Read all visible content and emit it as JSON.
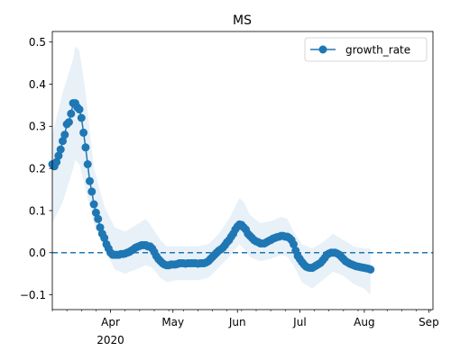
{
  "chart_data": {
    "type": "line",
    "title": "MS",
    "xlabel": "",
    "ylabel": "",
    "legend": {
      "entries": [
        "growth_rate"
      ],
      "placement": "top-right"
    },
    "x_start": "2020-03-04",
    "x_end": "2020-09-03",
    "y_range": [
      -0.135,
      0.525
    ],
    "y_ticks": [
      -0.1,
      0.0,
      0.1,
      0.2,
      0.3,
      0.4,
      0.5
    ],
    "y_tick_labels": [
      "−0.1",
      "0.0",
      "0.1",
      "0.2",
      "0.3",
      "0.4",
      "0.5"
    ],
    "x_major_ticks": [
      {
        "date": "2020-04-01",
        "label": "Apr",
        "sublabel": "2020"
      },
      {
        "date": "2020-05-01",
        "label": "May",
        "sublabel": ""
      },
      {
        "date": "2020-06-01",
        "label": "Jun",
        "sublabel": ""
      },
      {
        "date": "2020-07-01",
        "label": "Jul",
        "sublabel": ""
      },
      {
        "date": "2020-08-01",
        "label": "Aug",
        "sublabel": ""
      },
      {
        "date": "2020-09-01",
        "label": "Sep",
        "sublabel": ""
      }
    ],
    "reference_line": {
      "y": 0.0,
      "style": "dashed"
    },
    "series": [
      {
        "name": "growth_rate",
        "color": "#1f77b4",
        "band_color": "#1f77b4",
        "points": [
          [
            0,
            0.21
          ],
          [
            1,
            0.205
          ],
          [
            2,
            0.215
          ],
          [
            3,
            0.23
          ],
          [
            4,
            0.245
          ],
          [
            5,
            0.265
          ],
          [
            6,
            0.28
          ],
          [
            7,
            0.305
          ],
          [
            8,
            0.31
          ],
          [
            9,
            0.33
          ],
          [
            10,
            0.355
          ],
          [
            11,
            0.355
          ],
          [
            12,
            0.345
          ],
          [
            13,
            0.34
          ],
          [
            14,
            0.32
          ],
          [
            15,
            0.285
          ],
          [
            16,
            0.25
          ],
          [
            17,
            0.21
          ],
          [
            18,
            0.17
          ],
          [
            19,
            0.145
          ],
          [
            20,
            0.115
          ],
          [
            21,
            0.095
          ],
          [
            22,
            0.08
          ],
          [
            23,
            0.06
          ],
          [
            24,
            0.045
          ],
          [
            25,
            0.035
          ],
          [
            26,
            0.02
          ],
          [
            27,
            0.01
          ],
          [
            28,
            0.0
          ],
          [
            29,
            -0.005
          ],
          [
            30,
            -0.005
          ],
          [
            31,
            -0.005
          ],
          [
            32,
            -0.005
          ],
          [
            33,
            -0.003
          ],
          [
            34,
            -0.003
          ],
          [
            35,
            -0.002
          ],
          [
            36,
            0.0
          ],
          [
            37,
            0.002
          ],
          [
            38,
            0.005
          ],
          [
            39,
            0.008
          ],
          [
            40,
            0.012
          ],
          [
            41,
            0.014
          ],
          [
            42,
            0.016
          ],
          [
            43,
            0.018
          ],
          [
            44,
            0.018
          ],
          [
            45,
            0.018
          ],
          [
            46,
            0.015
          ],
          [
            47,
            0.015
          ],
          [
            48,
            0.01
          ],
          [
            49,
            0.002
          ],
          [
            50,
            -0.008
          ],
          [
            51,
            -0.015
          ],
          [
            52,
            -0.02
          ],
          [
            53,
            -0.025
          ],
          [
            54,
            -0.028
          ],
          [
            55,
            -0.03
          ],
          [
            56,
            -0.03
          ],
          [
            57,
            -0.028
          ],
          [
            58,
            -0.028
          ],
          [
            59,
            -0.028
          ],
          [
            60,
            -0.027
          ],
          [
            61,
            -0.025
          ],
          [
            62,
            -0.025
          ],
          [
            63,
            -0.025
          ],
          [
            64,
            -0.026
          ],
          [
            65,
            -0.025
          ],
          [
            66,
            -0.025
          ],
          [
            67,
            -0.025
          ],
          [
            68,
            -0.025
          ],
          [
            69,
            -0.025
          ],
          [
            70,
            -0.026
          ],
          [
            71,
            -0.025
          ],
          [
            72,
            -0.025
          ],
          [
            73,
            -0.025
          ],
          [
            74,
            -0.023
          ],
          [
            75,
            -0.02
          ],
          [
            76,
            -0.015
          ],
          [
            77,
            -0.01
          ],
          [
            78,
            -0.005
          ],
          [
            79,
            0.0
          ],
          [
            80,
            0.005
          ],
          [
            81,
            0.008
          ],
          [
            82,
            0.012
          ],
          [
            83,
            0.018
          ],
          [
            84,
            0.025
          ],
          [
            85,
            0.03
          ],
          [
            86,
            0.038
          ],
          [
            87,
            0.045
          ],
          [
            88,
            0.055
          ],
          [
            89,
            0.062
          ],
          [
            90,
            0.067
          ],
          [
            91,
            0.066
          ],
          [
            92,
            0.06
          ],
          [
            93,
            0.055
          ],
          [
            94,
            0.045
          ],
          [
            95,
            0.04
          ],
          [
            96,
            0.035
          ],
          [
            97,
            0.03
          ],
          [
            98,
            0.027
          ],
          [
            99,
            0.025
          ],
          [
            100,
            0.022
          ],
          [
            101,
            0.022
          ],
          [
            102,
            0.022
          ],
          [
            103,
            0.025
          ],
          [
            104,
            0.028
          ],
          [
            105,
            0.03
          ],
          [
            106,
            0.033
          ],
          [
            107,
            0.035
          ],
          [
            108,
            0.037
          ],
          [
            109,
            0.038
          ],
          [
            110,
            0.04
          ],
          [
            111,
            0.04
          ],
          [
            112,
            0.038
          ],
          [
            113,
            0.038
          ],
          [
            114,
            0.035
          ],
          [
            115,
            0.03
          ],
          [
            116,
            0.02
          ],
          [
            117,
            0.005
          ],
          [
            118,
            -0.008
          ],
          [
            119,
            -0.015
          ],
          [
            120,
            -0.022
          ],
          [
            121,
            -0.028
          ],
          [
            122,
            -0.033
          ],
          [
            123,
            -0.035
          ],
          [
            124,
            -0.036
          ],
          [
            125,
            -0.036
          ],
          [
            126,
            -0.033
          ],
          [
            127,
            -0.03
          ],
          [
            128,
            -0.027
          ],
          [
            129,
            -0.024
          ],
          [
            130,
            -0.018
          ],
          [
            131,
            -0.012
          ],
          [
            132,
            -0.005
          ],
          [
            133,
            -0.002
          ],
          [
            134,
            0.0
          ],
          [
            135,
            0.0
          ],
          [
            136,
            0.0
          ],
          [
            137,
            -0.002
          ],
          [
            138,
            -0.005
          ],
          [
            139,
            -0.01
          ],
          [
            140,
            -0.015
          ],
          [
            141,
            -0.02
          ],
          [
            142,
            -0.023
          ],
          [
            143,
            -0.026
          ],
          [
            144,
            -0.028
          ],
          [
            145,
            -0.03
          ],
          [
            146,
            -0.032
          ],
          [
            147,
            -0.033
          ],
          [
            148,
            -0.034
          ],
          [
            149,
            -0.035
          ],
          [
            150,
            -0.036
          ],
          [
            151,
            -0.037
          ],
          [
            152,
            -0.038
          ],
          [
            153,
            -0.04
          ]
        ],
        "band": [
          [
            0,
            0.07,
            0.28
          ],
          [
            5,
            0.12,
            0.38
          ],
          [
            10,
            0.2,
            0.46
          ],
          [
            11,
            0.22,
            0.49
          ],
          [
            13,
            0.21,
            0.48
          ],
          [
            16,
            0.15,
            0.38
          ],
          [
            20,
            0.07,
            0.2
          ],
          [
            25,
            0.01,
            0.11
          ],
          [
            30,
            -0.04,
            0.06
          ],
          [
            35,
            -0.05,
            0.05
          ],
          [
            40,
            -0.04,
            0.065
          ],
          [
            45,
            -0.03,
            0.08
          ],
          [
            48,
            -0.035,
            0.06
          ],
          [
            52,
            -0.06,
            0.03
          ],
          [
            55,
            -0.07,
            0.015
          ],
          [
            60,
            -0.065,
            0.015
          ],
          [
            65,
            -0.065,
            0.015
          ],
          [
            70,
            -0.065,
            0.015
          ],
          [
            75,
            -0.06,
            0.02
          ],
          [
            80,
            -0.035,
            0.045
          ],
          [
            85,
            -0.01,
            0.08
          ],
          [
            90,
            0.02,
            0.13
          ],
          [
            92,
            0.01,
            0.12
          ],
          [
            95,
            -0.01,
            0.09
          ],
          [
            100,
            -0.02,
            0.07
          ],
          [
            105,
            -0.015,
            0.075
          ],
          [
            110,
            -0.005,
            0.085
          ],
          [
            113,
            -0.01,
            0.08
          ],
          [
            116,
            -0.03,
            0.05
          ],
          [
            120,
            -0.07,
            0.02
          ],
          [
            125,
            -0.085,
            0.01
          ],
          [
            130,
            -0.065,
            0.025
          ],
          [
            135,
            -0.045,
            0.045
          ],
          [
            140,
            -0.055,
            0.03
          ],
          [
            145,
            -0.075,
            0.015
          ],
          [
            150,
            -0.085,
            0.01
          ],
          [
            153,
            -0.1,
            0.01
          ]
        ]
      }
    ]
  }
}
